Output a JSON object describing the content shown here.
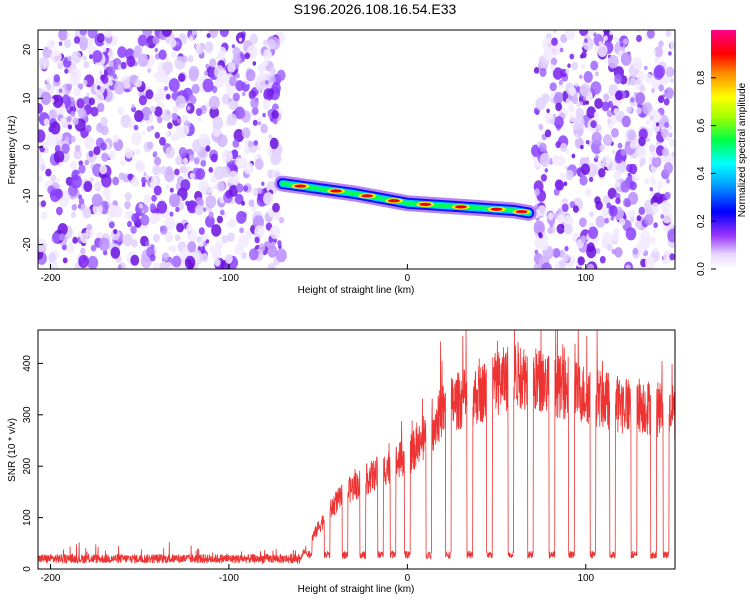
{
  "title": "S196.2026.108.16.54.E33",
  "spectrogram": {
    "type": "heatmap",
    "xlabel": "Height of straight line (km)",
    "ylabel": "Frequency (Hz)",
    "xlim": [
      -207,
      150
    ],
    "ylim": [
      -25,
      24
    ],
    "xticks": [
      -200,
      -100,
      0,
      100
    ],
    "xtick_labels": [
      "-200",
      "-100",
      "0",
      "100"
    ],
    "yticks": [
      -20,
      -10,
      0,
      10,
      20
    ],
    "ytick_labels": [
      "-20",
      "-10",
      "0",
      "10",
      "20"
    ],
    "noise_region_left": [
      -207,
      -70
    ],
    "noise_region_right": [
      72,
      150
    ],
    "signal_track": {
      "x": [
        -70,
        -50,
        -30,
        -15,
        0,
        20,
        40,
        60,
        68
      ],
      "y": [
        -7.5,
        -8.5,
        -9.5,
        -10.5,
        -11.5,
        -12,
        -12.5,
        -13,
        -13.5
      ]
    },
    "colorbar": {
      "label": "Normalized spectral amplitude",
      "ticks": [
        0.0,
        0.2,
        0.4,
        0.6,
        0.8
      ],
      "tick_labels": [
        "0.0",
        "0.2",
        "0.4",
        "0.6",
        "0.8"
      ],
      "range": [
        0,
        1
      ]
    }
  },
  "snr_plot": {
    "type": "line",
    "color": "#ee3333",
    "xlabel": "Height of straight line (km)",
    "ylabel": "SNR (10 * v/v)",
    "xlim": [
      -207,
      150
    ],
    "ylim": [
      0,
      465
    ],
    "xticks": [
      -200,
      -100,
      0,
      100
    ],
    "xtick_labels": [
      "-200",
      "-100",
      "0",
      "100"
    ],
    "yticks": [
      0,
      100,
      200,
      300,
      400
    ],
    "ytick_labels": [
      "0",
      "100",
      "200",
      "300",
      "400"
    ],
    "baseline_snr": {
      "x_range": [
        -207,
        -60
      ],
      "value": 20
    },
    "envelope": {
      "x": [
        -207,
        -60,
        -50,
        -40,
        -30,
        -20,
        -10,
        0,
        10,
        20,
        30,
        40,
        50,
        60,
        70,
        80,
        90,
        100,
        110,
        120,
        130,
        140,
        150
      ],
      "y": [
        20,
        20,
        80,
        130,
        160,
        180,
        200,
        220,
        250,
        310,
        330,
        340,
        360,
        380,
        370,
        360,
        350,
        340,
        330,
        320,
        320,
        310,
        300
      ]
    },
    "dropouts_x": [
      -55,
      -45,
      -35,
      -25,
      -15,
      -8,
      0,
      12,
      23,
      35,
      46,
      58,
      69,
      81,
      92,
      104,
      115,
      127,
      138,
      145
    ],
    "dropout_level": 20
  }
}
